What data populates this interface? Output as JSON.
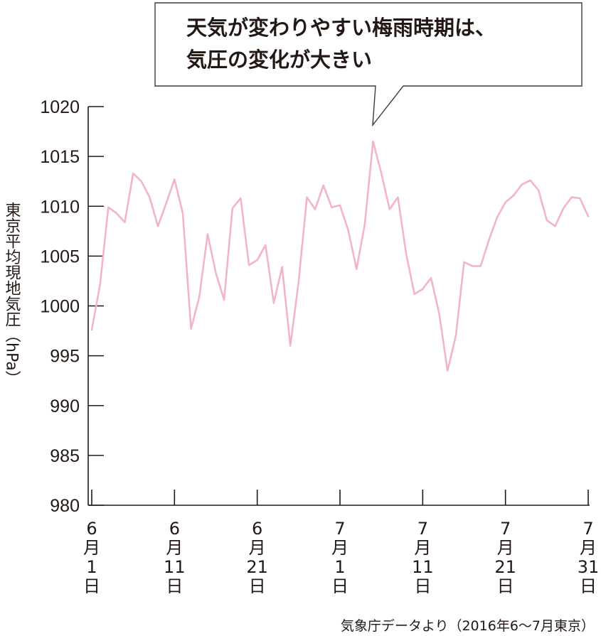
{
  "chart_data": {
    "type": "line",
    "title": "",
    "xlabel": "",
    "ylabel": "東京平均現地気圧（hPa）",
    "ylim": [
      980,
      1020
    ],
    "y_ticks": [
      1020,
      1015,
      1010,
      1005,
      1000,
      995,
      990,
      985,
      980
    ],
    "x_ticks": [
      {
        "date": "2016-06-01",
        "month": "6",
        "month_unit": "月",
        "day": "1",
        "day_unit": "日"
      },
      {
        "date": "2016-06-11",
        "month": "6",
        "month_unit": "月",
        "day": "11",
        "day_unit": "日"
      },
      {
        "date": "2016-06-21",
        "month": "6",
        "month_unit": "月",
        "day": "21",
        "day_unit": "日"
      },
      {
        "date": "2016-07-01",
        "month": "7",
        "month_unit": "月",
        "day": "1",
        "day_unit": "日"
      },
      {
        "date": "2016-07-11",
        "month": "7",
        "month_unit": "月",
        "day": "11",
        "day_unit": "日"
      },
      {
        "date": "2016-07-21",
        "month": "7",
        "month_unit": "月",
        "day": "21",
        "day_unit": "日"
      },
      {
        "date": "2016-07-31",
        "month": "7",
        "month_unit": "月",
        "day": "31",
        "day_unit": "日"
      }
    ],
    "series": [
      {
        "color": "#f2b3cc",
        "x": [
          "2016-06-01",
          "2016-06-02",
          "2016-06-03",
          "2016-06-04",
          "2016-06-05",
          "2016-06-06",
          "2016-06-07",
          "2016-06-08",
          "2016-06-09",
          "2016-06-10",
          "2016-06-11",
          "2016-06-12",
          "2016-06-13",
          "2016-06-14",
          "2016-06-15",
          "2016-06-16",
          "2016-06-17",
          "2016-06-18",
          "2016-06-19",
          "2016-06-20",
          "2016-06-21",
          "2016-06-22",
          "2016-06-23",
          "2016-06-24",
          "2016-06-25",
          "2016-06-26",
          "2016-06-27",
          "2016-06-28",
          "2016-06-29",
          "2016-06-30",
          "2016-07-01",
          "2016-07-02",
          "2016-07-03",
          "2016-07-04",
          "2016-07-05",
          "2016-07-06",
          "2016-07-07",
          "2016-07-08",
          "2016-07-09",
          "2016-07-10",
          "2016-07-11",
          "2016-07-12",
          "2016-07-13",
          "2016-07-14",
          "2016-07-15",
          "2016-07-16",
          "2016-07-17",
          "2016-07-18",
          "2016-07-19",
          "2016-07-20",
          "2016-07-21",
          "2016-07-22",
          "2016-07-23",
          "2016-07-24",
          "2016-07-25",
          "2016-07-26",
          "2016-07-27",
          "2016-07-28",
          "2016-07-29",
          "2016-07-30",
          "2016-07-31"
        ],
        "values": [
          997.6,
          1002.1,
          1009.9,
          1009.3,
          1008.4,
          1013.3,
          1012.5,
          1010.9,
          1008.0,
          1010.3,
          1012.7,
          1009.3,
          997.7,
          1000.9,
          1007.2,
          1003.3,
          1000.6,
          1009.8,
          1010.8,
          1004.1,
          1004.6,
          1006.1,
          1000.3,
          1003.9,
          996.0,
          1002.4,
          1010.9,
          1009.7,
          1012.1,
          1009.9,
          1010.1,
          1007.6,
          1003.7,
          1008.2,
          1016.5,
          1013.3,
          1009.7,
          1010.9,
          1005.2,
          1001.2,
          1001.7,
          1002.8,
          999.2,
          993.5,
          997.0,
          1004.4,
          1004.0,
          1004.0,
          1006.6,
          1008.9,
          1010.4,
          1011.1,
          1012.2,
          1012.6,
          1011.6,
          1008.6,
          1008.0,
          1009.8,
          1010.9,
          1010.8,
          1009.0
        ]
      }
    ],
    "annotation": {
      "line1": "天気が変わりやすい梅雨時期は、",
      "line2": "気圧の変化が大きい",
      "target_date": "2016-07-05"
    },
    "source": "気象庁データより（2016年6〜7月東京）",
    "grid": false,
    "legend": "none"
  }
}
